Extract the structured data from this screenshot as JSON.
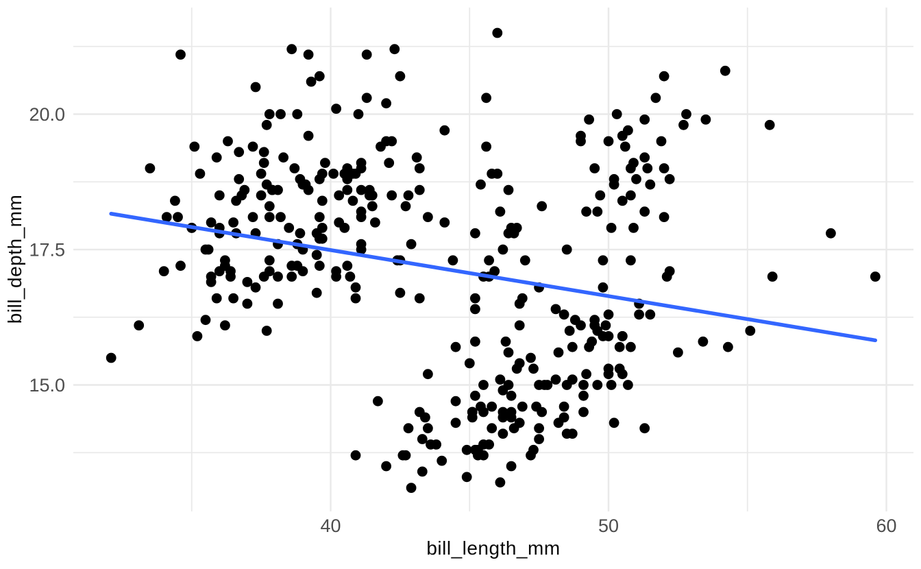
{
  "chart_data": {
    "type": "scatter",
    "title": "",
    "xlabel": "bill_length_mm",
    "ylabel": "bill_depth_mm",
    "background_color": "#ffffff",
    "grid": "on",
    "grid_color": "#e9e9e9",
    "point_color": "#000000",
    "tick_label_color": "#4d4d4d",
    "axis_title_color": "#0a0a0a",
    "x_axis": {
      "range": [
        30.7,
        61.0
      ],
      "major_ticks": [
        40,
        50,
        60
      ],
      "tick_labels": [
        "40",
        "50",
        "60"
      ],
      "minor_ticks": [
        35,
        45,
        55
      ]
    },
    "y_axis": {
      "range": [
        12.7,
        21.9
      ],
      "major_ticks": [
        15.0,
        17.5,
        20.0
      ],
      "tick_labels": [
        "15.0",
        "17.5",
        "20.0"
      ],
      "minor_ticks": [
        13.75,
        16.25,
        18.75,
        21.25
      ]
    },
    "trend_line": {
      "type": "linear-regression",
      "color": "#3366FF",
      "slope": -0.085,
      "intercept": 20.89,
      "x_start": 32.1,
      "x_end": 59.6
    },
    "points": [
      [
        39.1,
        18.7
      ],
      [
        39.5,
        17.4
      ],
      [
        40.3,
        18.0
      ],
      [
        36.7,
        19.3
      ],
      [
        39.3,
        20.6
      ],
      [
        38.9,
        17.8
      ],
      [
        39.2,
        19.6
      ],
      [
        34.1,
        18.1
      ],
      [
        42.0,
        20.2
      ],
      [
        37.8,
        17.1
      ],
      [
        37.8,
        17.3
      ],
      [
        41.1,
        17.6
      ],
      [
        38.6,
        21.2
      ],
      [
        34.6,
        21.1
      ],
      [
        36.6,
        17.8
      ],
      [
        38.7,
        19.0
      ],
      [
        42.5,
        20.7
      ],
      [
        34.4,
        18.4
      ],
      [
        46.0,
        21.5
      ],
      [
        37.8,
        18.3
      ],
      [
        37.7,
        18.7
      ],
      [
        35.9,
        19.2
      ],
      [
        38.2,
        18.1
      ],
      [
        38.8,
        17.2
      ],
      [
        35.3,
        18.9
      ],
      [
        40.6,
        18.6
      ],
      [
        40.5,
        17.9
      ],
      [
        37.9,
        18.6
      ],
      [
        40.5,
        18.9
      ],
      [
        39.5,
        16.7
      ],
      [
        37.2,
        18.1
      ],
      [
        39.5,
        17.8
      ],
      [
        40.9,
        18.9
      ],
      [
        36.4,
        17.0
      ],
      [
        39.2,
        21.1
      ],
      [
        38.8,
        20.0
      ],
      [
        42.2,
        18.5
      ],
      [
        37.6,
        19.3
      ],
      [
        39.8,
        19.1
      ],
      [
        36.5,
        18.0
      ],
      [
        40.8,
        18.4
      ],
      [
        36.0,
        18.5
      ],
      [
        44.1,
        19.7
      ],
      [
        37.0,
        16.9
      ],
      [
        39.6,
        18.8
      ],
      [
        41.1,
        19.0
      ],
      [
        37.5,
        18.9
      ],
      [
        36.0,
        17.9
      ],
      [
        42.3,
        21.2
      ],
      [
        39.6,
        17.7
      ],
      [
        40.1,
        18.9
      ],
      [
        35.0,
        17.9
      ],
      [
        42.0,
        19.5
      ],
      [
        34.5,
        18.1
      ],
      [
        41.4,
        18.6
      ],
      [
        39.0,
        17.5
      ],
      [
        40.6,
        18.8
      ],
      [
        36.5,
        16.6
      ],
      [
        37.6,
        19.1
      ],
      [
        35.7,
        16.9
      ],
      [
        41.3,
        21.1
      ],
      [
        37.6,
        17.0
      ],
      [
        41.1,
        18.2
      ],
      [
        36.4,
        17.1
      ],
      [
        41.6,
        18.0
      ],
      [
        35.5,
        16.2
      ],
      [
        41.1,
        19.1
      ],
      [
        35.9,
        16.6
      ],
      [
        41.8,
        19.4
      ],
      [
        33.5,
        19.0
      ],
      [
        39.7,
        18.4
      ],
      [
        39.6,
        17.2
      ],
      [
        45.8,
        18.9
      ],
      [
        35.5,
        17.5
      ],
      [
        42.8,
        18.5
      ],
      [
        40.9,
        16.8
      ],
      [
        37.2,
        19.4
      ],
      [
        36.2,
        16.1
      ],
      [
        42.1,
        19.1
      ],
      [
        34.6,
        17.2
      ],
      [
        42.9,
        17.6
      ],
      [
        36.7,
        18.8
      ],
      [
        35.1,
        19.4
      ],
      [
        37.3,
        17.8
      ],
      [
        41.3,
        20.3
      ],
      [
        36.3,
        19.5
      ],
      [
        36.9,
        18.6
      ],
      [
        38.3,
        19.2
      ],
      [
        38.9,
        18.8
      ],
      [
        35.7,
        18.0
      ],
      [
        41.1,
        18.1
      ],
      [
        34.0,
        17.1
      ],
      [
        39.6,
        18.1
      ],
      [
        36.2,
        17.3
      ],
      [
        40.8,
        18.9
      ],
      [
        38.1,
        18.6
      ],
      [
        40.3,
        18.5
      ],
      [
        33.1,
        16.1
      ],
      [
        43.2,
        18.6
      ],
      [
        35.0,
        17.9
      ],
      [
        41.0,
        20.0
      ],
      [
        37.7,
        16.0
      ],
      [
        37.8,
        20.0
      ],
      [
        37.9,
        18.6
      ],
      [
        39.7,
        18.9
      ],
      [
        38.6,
        17.2
      ],
      [
        38.2,
        20.0
      ],
      [
        38.1,
        17.0
      ],
      [
        43.2,
        19.0
      ],
      [
        38.1,
        16.5
      ],
      [
        45.6,
        20.3
      ],
      [
        39.7,
        17.7
      ],
      [
        42.2,
        19.5
      ],
      [
        39.6,
        20.7
      ],
      [
        42.7,
        18.3
      ],
      [
        38.6,
        17.0
      ],
      [
        37.3,
        20.5
      ],
      [
        35.7,
        17.0
      ],
      [
        41.1,
        18.6
      ],
      [
        36.2,
        17.2
      ],
      [
        37.7,
        19.8
      ],
      [
        40.2,
        17.0
      ],
      [
        41.4,
        18.5
      ],
      [
        35.2,
        15.9
      ],
      [
        40.6,
        19.0
      ],
      [
        38.8,
        17.6
      ],
      [
        41.5,
        18.3
      ],
      [
        39.0,
        17.1
      ],
      [
        44.1,
        18.0
      ],
      [
        38.5,
        17.9
      ],
      [
        43.1,
        19.2
      ],
      [
        36.8,
        18.5
      ],
      [
        37.5,
        18.5
      ],
      [
        38.1,
        17.6
      ],
      [
        41.1,
        17.5
      ],
      [
        35.6,
        17.5
      ],
      [
        40.2,
        20.1
      ],
      [
        37.0,
        16.5
      ],
      [
        39.7,
        17.9
      ],
      [
        40.2,
        17.1
      ],
      [
        40.6,
        17.2
      ],
      [
        32.1,
        15.5
      ],
      [
        40.7,
        17.0
      ],
      [
        37.3,
        16.8
      ],
      [
        39.0,
        18.7
      ],
      [
        39.2,
        18.6
      ],
      [
        36.6,
        18.4
      ],
      [
        36.0,
        17.8
      ],
      [
        37.8,
        18.1
      ],
      [
        36.0,
        17.1
      ],
      [
        41.5,
        18.5
      ],
      [
        46.1,
        13.2
      ],
      [
        50.0,
        16.3
      ],
      [
        48.7,
        14.1
      ],
      [
        50.0,
        15.2
      ],
      [
        47.6,
        14.5
      ],
      [
        46.5,
        13.5
      ],
      [
        45.4,
        14.6
      ],
      [
        46.7,
        15.3
      ],
      [
        43.3,
        13.4
      ],
      [
        46.8,
        15.4
      ],
      [
        40.9,
        13.7
      ],
      [
        49.0,
        16.1
      ],
      [
        45.5,
        13.7
      ],
      [
        48.4,
        14.6
      ],
      [
        45.8,
        14.6
      ],
      [
        49.3,
        15.7
      ],
      [
        42.0,
        13.5
      ],
      [
        49.2,
        15.2
      ],
      [
        46.2,
        14.5
      ],
      [
        48.7,
        15.1
      ],
      [
        50.2,
        14.3
      ],
      [
        45.1,
        14.5
      ],
      [
        46.5,
        14.5
      ],
      [
        46.3,
        15.8
      ],
      [
        42.9,
        13.1
      ],
      [
        46.1,
        15.1
      ],
      [
        44.5,
        14.3
      ],
      [
        47.8,
        15.0
      ],
      [
        48.2,
        14.3
      ],
      [
        50.0,
        15.3
      ],
      [
        47.3,
        15.3
      ],
      [
        42.8,
        14.2
      ],
      [
        45.1,
        14.5
      ],
      [
        59.6,
        17.0
      ],
      [
        49.1,
        14.8
      ],
      [
        48.4,
        16.3
      ],
      [
        42.6,
        13.7
      ],
      [
        44.4,
        17.3
      ],
      [
        44.0,
        13.6
      ],
      [
        48.7,
        15.7
      ],
      [
        42.7,
        13.7
      ],
      [
        49.6,
        16.0
      ],
      [
        45.3,
        13.7
      ],
      [
        49.6,
        15.0
      ],
      [
        50.5,
        15.9
      ],
      [
        43.6,
        13.9
      ],
      [
        45.5,
        13.9
      ],
      [
        50.5,
        15.9
      ],
      [
        44.9,
        13.3
      ],
      [
        45.2,
        15.8
      ],
      [
        46.6,
        14.2
      ],
      [
        48.5,
        14.1
      ],
      [
        45.1,
        14.4
      ],
      [
        50.1,
        15.0
      ],
      [
        46.5,
        14.4
      ],
      [
        45.0,
        15.4
      ],
      [
        43.8,
        13.9
      ],
      [
        45.5,
        15.0
      ],
      [
        43.2,
        14.5
      ],
      [
        50.4,
        15.3
      ],
      [
        45.3,
        13.8
      ],
      [
        46.2,
        14.9
      ],
      [
        45.7,
        13.9
      ],
      [
        54.3,
        15.7
      ],
      [
        45.8,
        14.2
      ],
      [
        49.8,
        16.8
      ],
      [
        46.2,
        14.4
      ],
      [
        49.5,
        16.2
      ],
      [
        43.5,
        14.2
      ],
      [
        50.7,
        15.0
      ],
      [
        47.7,
        15.0
      ],
      [
        46.4,
        15.6
      ],
      [
        48.2,
        15.6
      ],
      [
        46.5,
        14.8
      ],
      [
        46.4,
        15.0
      ],
      [
        48.6,
        16.0
      ],
      [
        47.5,
        14.2
      ],
      [
        51.1,
        16.3
      ],
      [
        45.2,
        13.8
      ],
      [
        45.2,
        16.4
      ],
      [
        49.1,
        14.5
      ],
      [
        52.5,
        15.6
      ],
      [
        47.4,
        14.6
      ],
      [
        50.0,
        15.9
      ],
      [
        44.9,
        13.8
      ],
      [
        50.8,
        17.3
      ],
      [
        43.4,
        14.4
      ],
      [
        51.3,
        14.2
      ],
      [
        47.5,
        14.0
      ],
      [
        52.1,
        17.0
      ],
      [
        47.5,
        15.0
      ],
      [
        52.2,
        17.1
      ],
      [
        45.5,
        14.5
      ],
      [
        49.5,
        16.1
      ],
      [
        44.5,
        14.7
      ],
      [
        50.8,
        15.7
      ],
      [
        49.4,
        15.8
      ],
      [
        46.9,
        14.6
      ],
      [
        48.4,
        14.4
      ],
      [
        51.1,
        16.5
      ],
      [
        48.5,
        15.0
      ],
      [
        55.9,
        17.0
      ],
      [
        47.2,
        15.5
      ],
      [
        49.1,
        15.0
      ],
      [
        47.3,
        13.8
      ],
      [
        46.8,
        16.1
      ],
      [
        41.7,
        14.7
      ],
      [
        53.4,
        15.8
      ],
      [
        43.3,
        14.0
      ],
      [
        48.1,
        15.1
      ],
      [
        50.5,
        15.2
      ],
      [
        49.8,
        15.9
      ],
      [
        43.5,
        15.2
      ],
      [
        51.5,
        16.3
      ],
      [
        46.2,
        14.1
      ],
      [
        55.1,
        16.0
      ],
      [
        44.5,
        15.7
      ],
      [
        48.8,
        16.2
      ],
      [
        47.2,
        13.7
      ],
      [
        46.8,
        14.3
      ],
      [
        50.4,
        15.7
      ],
      [
        45.2,
        14.8
      ],
      [
        49.9,
        16.1
      ],
      [
        46.5,
        17.9
      ],
      [
        50.0,
        19.5
      ],
      [
        51.3,
        19.2
      ],
      [
        45.4,
        18.7
      ],
      [
        52.7,
        19.8
      ],
      [
        45.2,
        17.8
      ],
      [
        46.1,
        18.2
      ],
      [
        51.3,
        18.2
      ],
      [
        46.0,
        18.9
      ],
      [
        51.3,
        19.9
      ],
      [
        46.6,
        17.8
      ],
      [
        51.7,
        20.3
      ],
      [
        47.0,
        17.3
      ],
      [
        52.0,
        18.1
      ],
      [
        45.9,
        17.1
      ],
      [
        50.5,
        19.6
      ],
      [
        50.3,
        20.0
      ],
      [
        58.0,
        17.8
      ],
      [
        46.4,
        18.6
      ],
      [
        49.2,
        18.2
      ],
      [
        42.4,
        17.3
      ],
      [
        48.5,
        17.5
      ],
      [
        43.2,
        16.6
      ],
      [
        50.6,
        19.4
      ],
      [
        46.7,
        17.9
      ],
      [
        52.0,
        19.0
      ],
      [
        50.5,
        18.4
      ],
      [
        49.5,
        19.0
      ],
      [
        46.4,
        17.8
      ],
      [
        52.8,
        20.0
      ],
      [
        40.9,
        16.6
      ],
      [
        54.2,
        20.8
      ],
      [
        42.5,
        16.7
      ],
      [
        51.0,
        18.8
      ],
      [
        49.7,
        18.5
      ],
      [
        47.5,
        16.8
      ],
      [
        47.6,
        18.3
      ],
      [
        52.0,
        20.7
      ],
      [
        46.9,
        16.6
      ],
      [
        53.5,
        19.9
      ],
      [
        49.0,
        19.5
      ],
      [
        46.2,
        17.5
      ],
      [
        50.9,
        19.1
      ],
      [
        45.5,
        17.0
      ],
      [
        50.9,
        17.9
      ],
      [
        50.8,
        18.5
      ],
      [
        50.1,
        17.9
      ],
      [
        49.0,
        19.6
      ],
      [
        51.5,
        18.7
      ],
      [
        49.8,
        17.3
      ],
      [
        48.1,
        16.4
      ],
      [
        51.4,
        19.0
      ],
      [
        45.7,
        17.3
      ],
      [
        50.7,
        19.7
      ],
      [
        42.5,
        17.3
      ],
      [
        52.2,
        18.8
      ],
      [
        45.2,
        16.6
      ],
      [
        49.3,
        19.9
      ],
      [
        50.2,
        18.8
      ],
      [
        45.6,
        19.4
      ],
      [
        51.9,
        19.5
      ],
      [
        46.8,
        16.5
      ],
      [
        45.7,
        17.0
      ],
      [
        55.8,
        19.8
      ],
      [
        43.5,
        18.1
      ],
      [
        49.6,
        18.2
      ],
      [
        50.8,
        19.0
      ],
      [
        50.2,
        18.7
      ]
    ]
  }
}
